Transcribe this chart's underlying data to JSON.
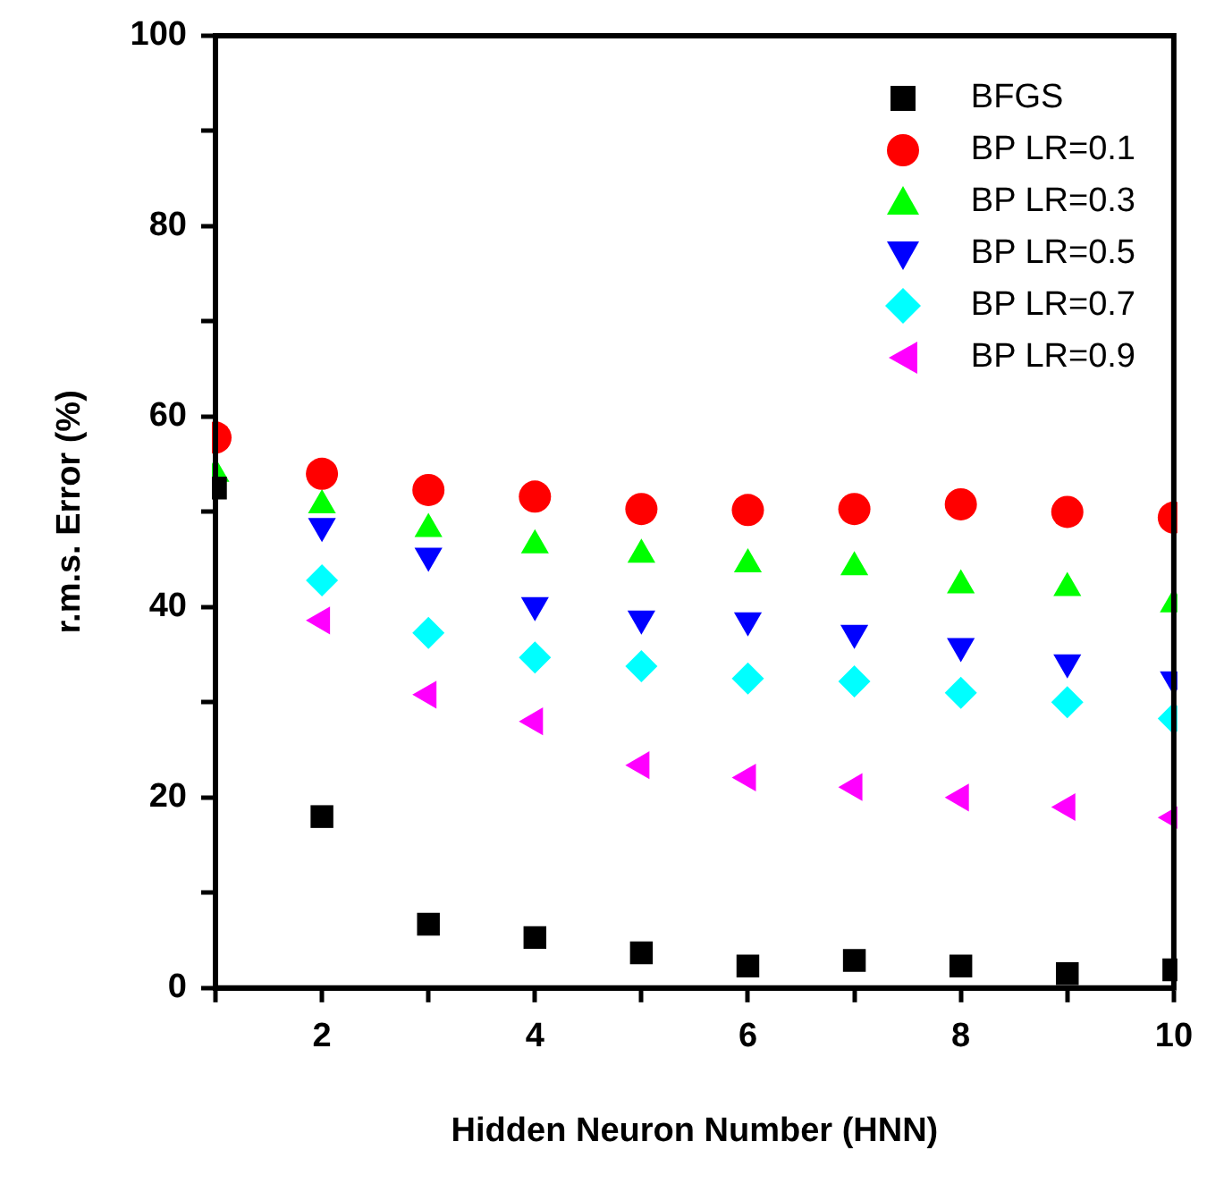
{
  "chart_data": {
    "type": "scatter",
    "xlabel": "Hidden Neuron Number (HNN)",
    "ylabel": "r.m.s. Error (%)",
    "x": [
      1,
      2,
      3,
      4,
      5,
      6,
      7,
      8,
      9,
      10
    ],
    "xlim": [
      1,
      10
    ],
    "xticks": [
      {
        "value": 1,
        "label": null
      },
      2,
      {
        "value": 3,
        "label": null
      },
      4,
      {
        "value": 5,
        "label": null
      },
      6,
      {
        "value": 7,
        "label": null
      },
      8,
      {
        "value": 9,
        "label": null
      },
      10
    ],
    "ylim": [
      0,
      100
    ],
    "yticks": [
      0,
      {
        "value": 10,
        "label": null
      },
      20,
      {
        "value": 30,
        "label": null
      },
      40,
      {
        "value": 50,
        "label": null
      },
      60,
      {
        "value": 70,
        "label": null
      },
      80,
      {
        "value": 90,
        "label": null
      },
      100
    ],
    "grid": false,
    "legend": "top right",
    "series": [
      {
        "name": "BFGS",
        "color": "#000000",
        "marker": "square",
        "values": [
          52.5,
          18,
          6.7,
          5.3,
          3.7,
          2.3,
          2.9,
          2.3,
          1.5,
          1.9
        ]
      },
      {
        "name": "BP LR=0.1",
        "color": "#ff0000",
        "marker": "circle",
        "values": [
          57.8,
          54,
          52.3,
          51.6,
          50.3,
          50.2,
          50.3,
          50.8,
          50,
          49.4
        ]
      },
      {
        "name": "BP LR=0.3",
        "color": "#00ff00",
        "marker": "triangle",
        "values": [
          54,
          50.7,
          48.2,
          46.5,
          45.5,
          44.5,
          44.2,
          42.3,
          42,
          40.3
        ]
      },
      {
        "name": "BP LR=0.5",
        "color": "#0000ff",
        "marker": "triangle-down",
        "values": [
          null,
          48.5,
          45.4,
          40.2,
          38.8,
          38.6,
          37.3,
          35.9,
          34.2,
          32.4
        ]
      },
      {
        "name": "BP LR=0.7",
        "color": "#00ffff",
        "marker": "diamond",
        "values": [
          null,
          42.8,
          37.3,
          34.7,
          33.8,
          32.5,
          32.2,
          31,
          30,
          28.3
        ]
      },
      {
        "name": "BP LR=0.9",
        "color": "#ff00ff",
        "marker": "triangle-left",
        "values": [
          null,
          38.6,
          30.8,
          28,
          23.4,
          22.1,
          21.1,
          20,
          19,
          17.9
        ]
      }
    ]
  }
}
